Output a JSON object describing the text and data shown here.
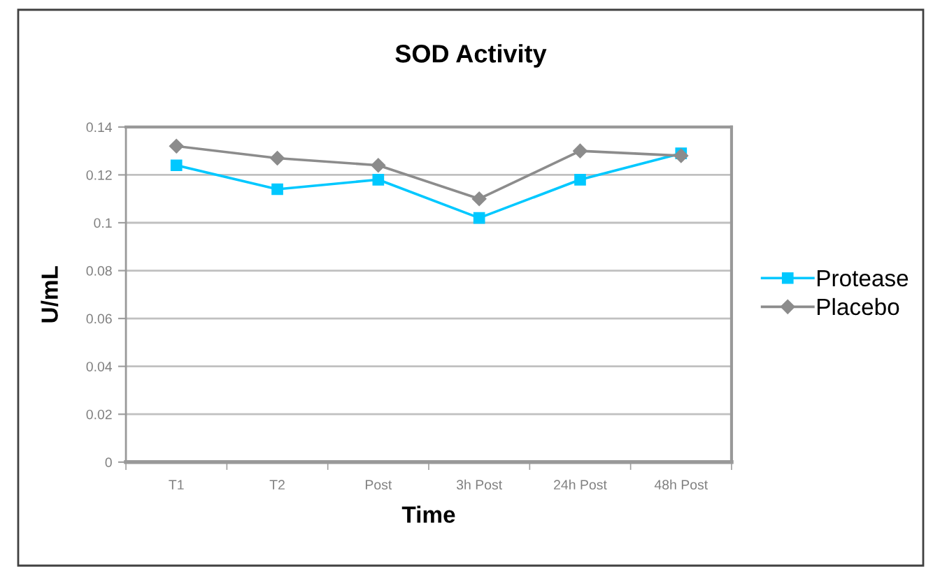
{
  "chart_data": {
    "type": "line",
    "title": "SOD Activity",
    "xlabel": "Time",
    "ylabel": "U/mL",
    "categories": [
      "T1",
      "T2",
      "Post",
      "3h Post",
      "24h Post",
      "48h Post"
    ],
    "series": [
      {
        "name": "Protease",
        "color": "#00c8ff",
        "marker": "square",
        "values": [
          0.124,
          0.114,
          0.118,
          0.102,
          0.118,
          0.129
        ]
      },
      {
        "name": "Placebo",
        "color": "#8c8c8c",
        "marker": "diamond",
        "values": [
          0.132,
          0.127,
          0.124,
          0.11,
          0.13,
          0.128
        ]
      }
    ],
    "ylim": [
      0,
      0.14
    ],
    "yticks": [
      0,
      0.02,
      0.04,
      0.06,
      0.08,
      {
        "value": 0.1,
        "label": "0.1"
      },
      0.12,
      0.14
    ],
    "grid": "y",
    "legend": "right",
    "line_style": "solid"
  }
}
